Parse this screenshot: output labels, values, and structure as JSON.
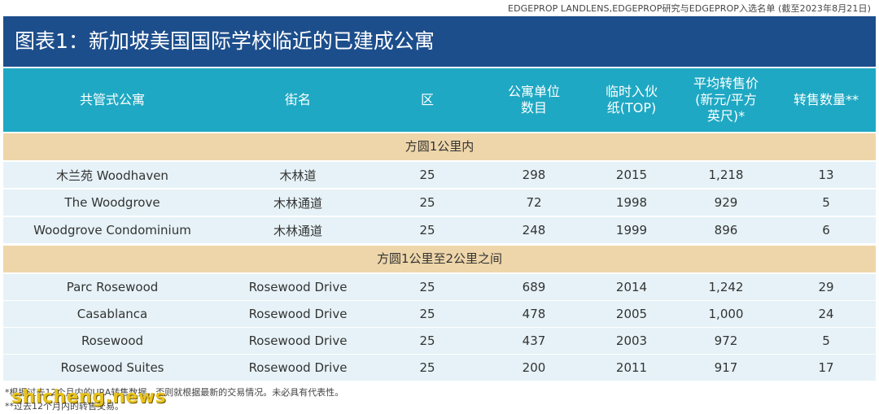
{
  "source": "EDGEPROP LANDLENS,EDGEPROP研究与EDGEPROP入选名单 (截至2023年8月21日)",
  "title": "图表1：新加坡美国国际学校临近的已建成公寓",
  "headers": [
    "共管式公寓",
    "街名",
    "区",
    "公寓单位\n数目",
    "临时入伙\n纸(TOP)",
    "平均转售价\n(新元/平方\n英尺)*",
    "转售数量**"
  ],
  "sections": [
    {
      "label": "方圆1公里内",
      "rows": [
        [
          "木兰苑 Woodhaven",
          "木林道",
          "25",
          "298",
          "2015",
          "1,218",
          "13"
        ],
        [
          "The Woodgrove",
          "木林通道",
          "25",
          "72",
          "1998",
          "929",
          "5"
        ],
        [
          "Woodgrove Condominium",
          "木林通道",
          "25",
          "248",
          "1999",
          "896",
          "6"
        ]
      ]
    },
    {
      "label": "方圆1公里至2公里之间",
      "rows": [
        [
          "Parc Rosewood",
          "Rosewood Drive",
          "25",
          "689",
          "2014",
          "1,242",
          "29"
        ],
        [
          "Casablanca",
          "Rosewood Drive",
          "25",
          "478",
          "2005",
          "1,000",
          "24"
        ],
        [
          "Rosewood",
          "Rosewood Drive",
          "25",
          "437",
          "2003",
          "972",
          "5"
        ],
        [
          "Rosewood Suites",
          "Rosewood Drive",
          "25",
          "200",
          "2011",
          "917",
          "17"
        ]
      ]
    }
  ],
  "footnotes": [
    "*根据过去12个月内的URA转售数据，否则就根据最新的交易情况。未必具有代表性。",
    "**过去12个月内的转售交易。"
  ],
  "watermark": "shicheng.news",
  "colors": {
    "title_bg": "#1d4e8c",
    "header_bg": "#1fa8c3",
    "section_bg": "#eed6aa",
    "row_bg": "#e6f2f7"
  }
}
